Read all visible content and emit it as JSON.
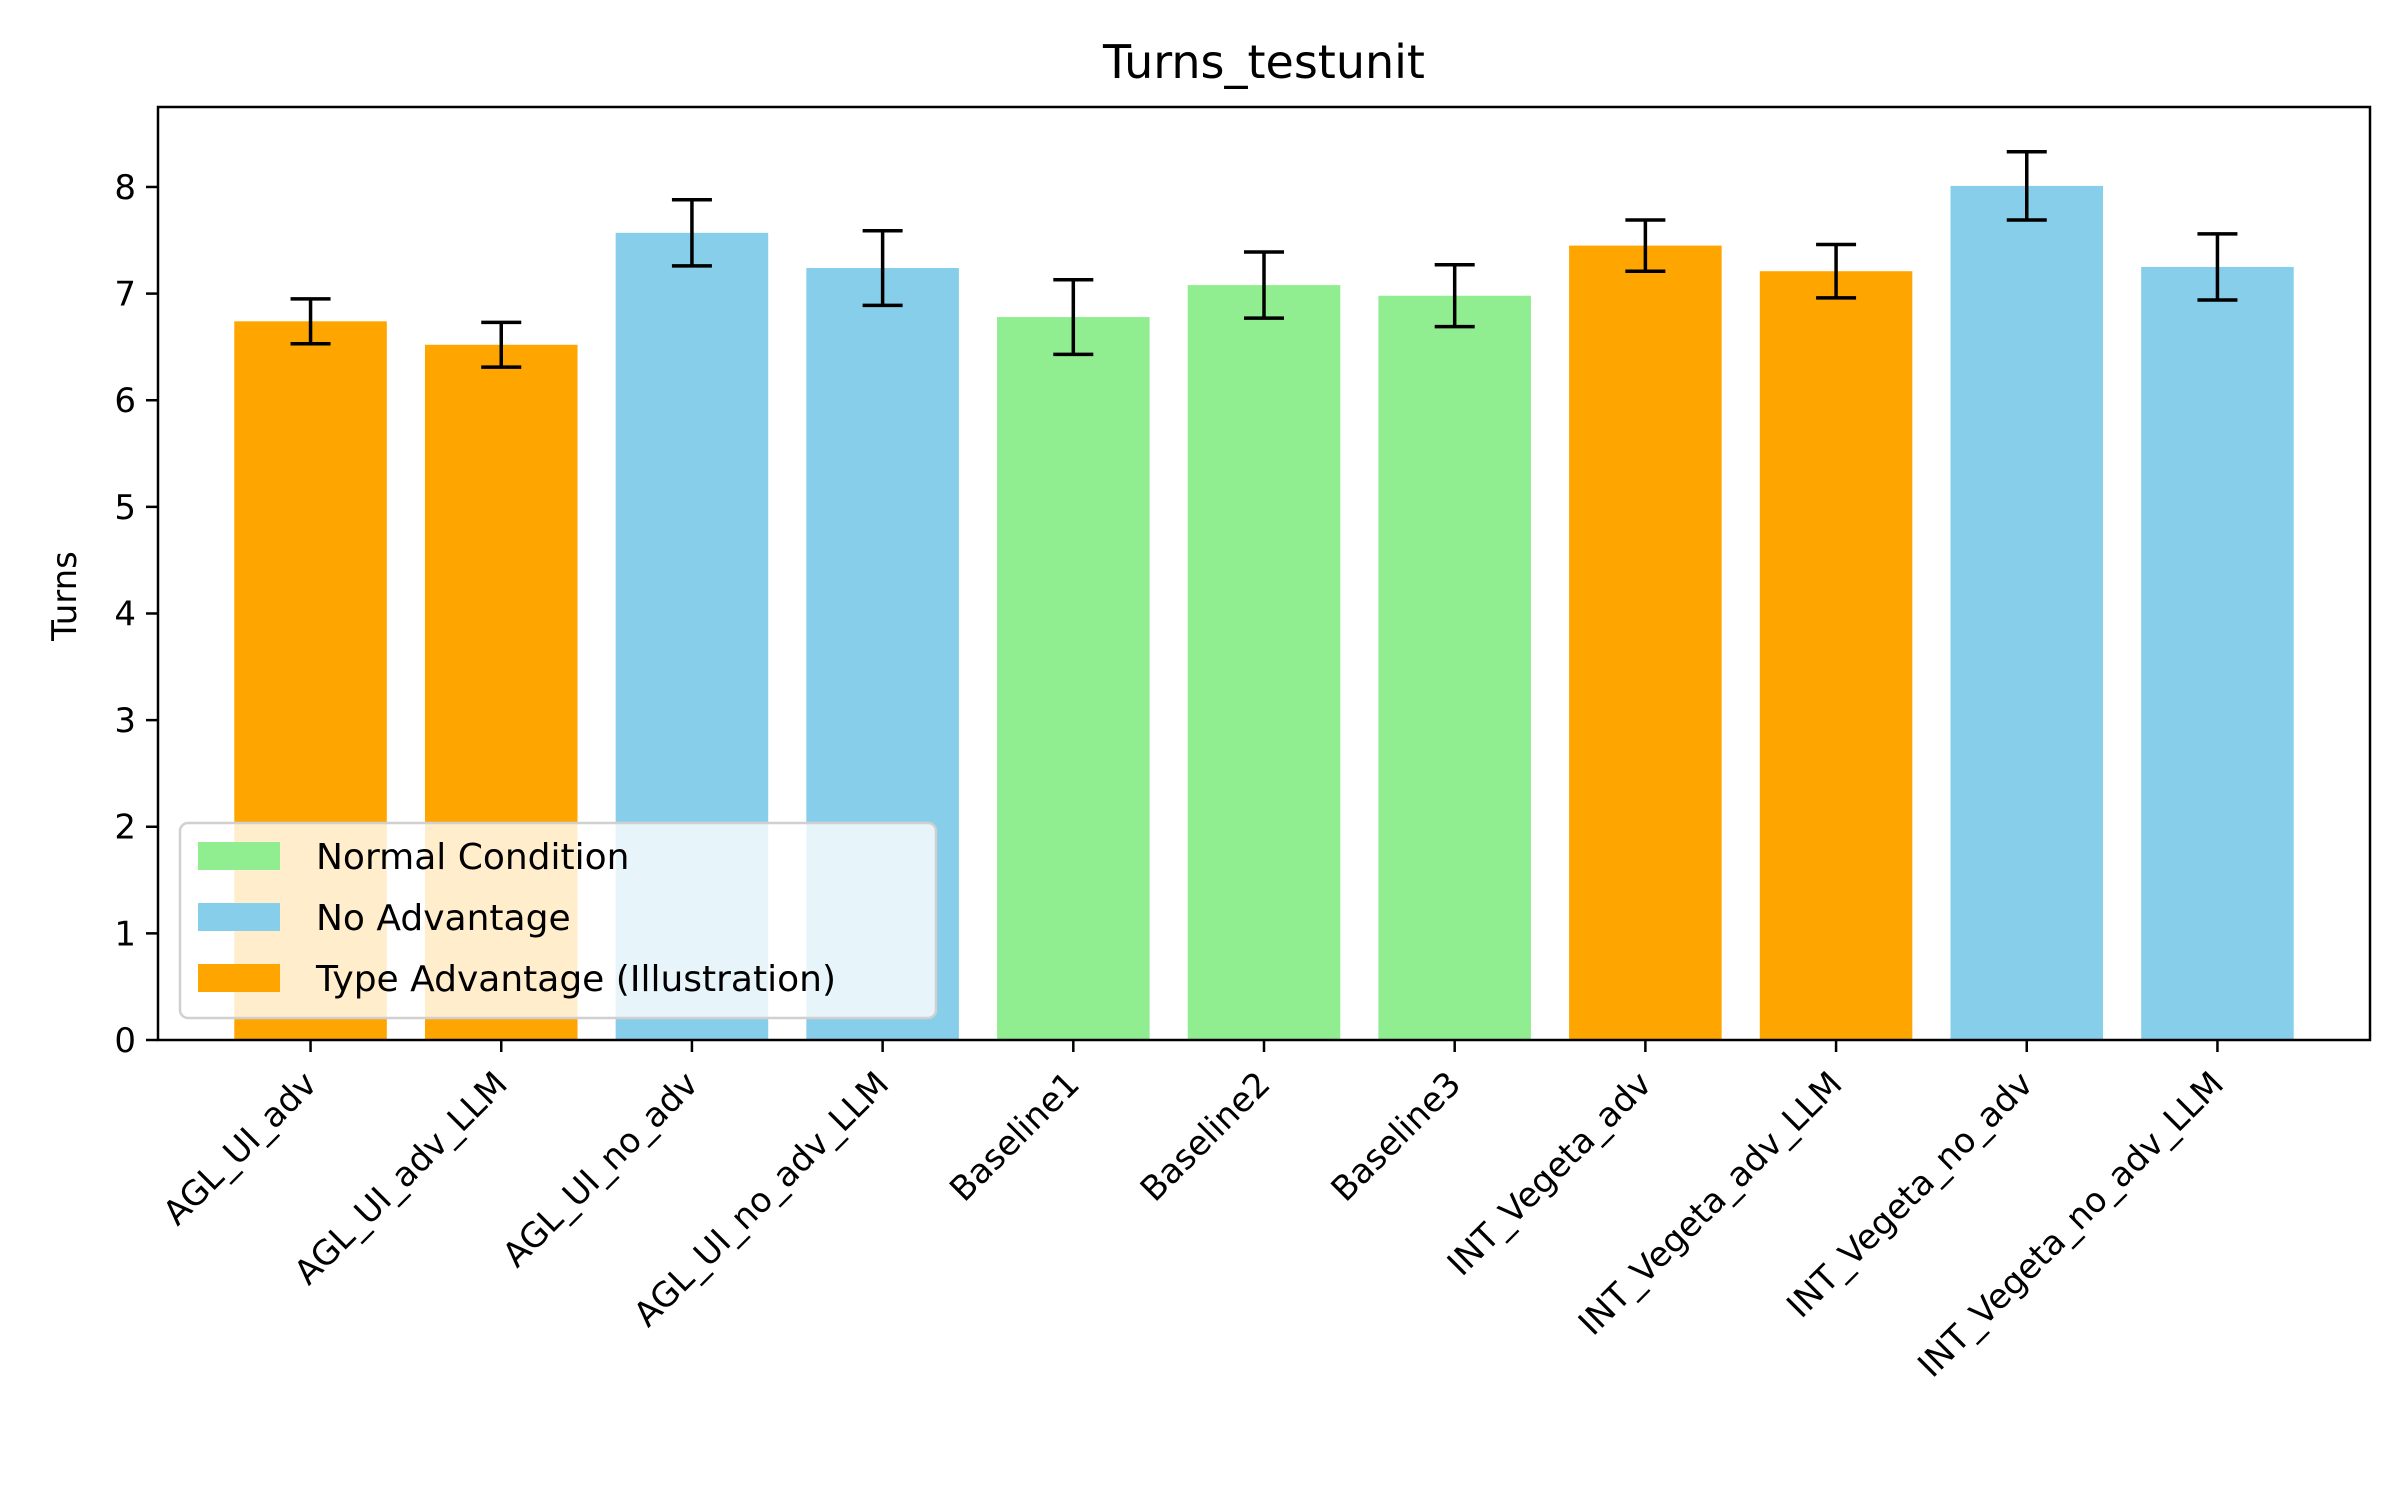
{
  "chart_data": {
    "type": "bar",
    "title": "Turns_testunit",
    "xlabel": "",
    "ylabel": "Turns",
    "ylim": [
      0,
      8.75
    ],
    "yticks": [
      0,
      1,
      2,
      3,
      4,
      5,
      6,
      7,
      8
    ],
    "categories": [
      "AGL_UI_adv",
      "AGL_UI_adv_LLM",
      "AGL_UI_no_adv",
      "AGL_UI_no_adv_LLM",
      "Baseline1",
      "Baseline2",
      "Baseline3",
      "INT_Vegeta_adv",
      "INT_Vegeta_adv_LLM",
      "INT_Vegeta_no_adv",
      "INT_Vegeta_no_adv_LLM"
    ],
    "values": [
      6.74,
      6.52,
      7.57,
      7.24,
      6.78,
      7.08,
      6.98,
      7.45,
      7.21,
      8.01,
      7.25
    ],
    "errors": [
      0.21,
      0.21,
      0.31,
      0.35,
      0.35,
      0.31,
      0.29,
      0.24,
      0.25,
      0.32,
      0.31
    ],
    "groups": [
      "Type Advantage (Illustration)",
      "Type Advantage (Illustration)",
      "No Advantage",
      "No Advantage",
      "Normal Condition",
      "Normal Condition",
      "Normal Condition",
      "Type Advantage (Illustration)",
      "Type Advantage (Illustration)",
      "No Advantage",
      "No Advantage"
    ],
    "legend": {
      "placement": "lower-left",
      "entries": [
        {
          "name": "Normal Condition",
          "color": "#90ee90"
        },
        {
          "name": "No Advantage",
          "color": "#87ceeb"
        },
        {
          "name": "Type Advantage (Illustration)",
          "color": "#ffa500"
        }
      ]
    },
    "grid": false
  }
}
